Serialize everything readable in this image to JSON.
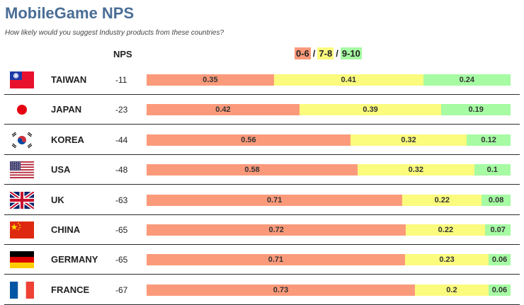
{
  "title": "MobileGame NPS",
  "subtitle": "How likely would you suggest Industry products from these countries?",
  "nps_header": "NPS",
  "legend": {
    "detractors": "0-6",
    "passives": "7-8",
    "promoters": "9-10",
    "separator": "/"
  },
  "colors": {
    "detractors": "#fb9a7b",
    "passives": "#fbfb7e",
    "promoters": "#a6fba3",
    "title": "#4a6d96"
  },
  "chart_data": {
    "type": "bar",
    "orientation": "horizontal",
    "stacked": true,
    "title": "MobileGame NPS",
    "subtitle": "How likely would you suggest Industry products from these countries?",
    "categories": [
      "TAIWAN",
      "JAPAN",
      "KOREA",
      "USA",
      "UK",
      "CHINA",
      "GERMANY",
      "FRANCE"
    ],
    "nps": [
      "-11",
      "-23",
      "-44",
      "-48",
      "-63",
      "-65",
      "-65",
      "-67"
    ],
    "flags": [
      "taiwan-flag-icon",
      "japan-flag-icon",
      "korea-flag-icon",
      "usa-flag-icon",
      "uk-flag-icon",
      "china-flag-icon",
      "germany-flag-icon",
      "france-flag-icon"
    ],
    "series": [
      {
        "name": "0-6",
        "values": [
          0.35,
          0.42,
          0.56,
          0.58,
          0.71,
          0.72,
          0.71,
          0.73
        ]
      },
      {
        "name": "7-8",
        "values": [
          0.41,
          0.39,
          0.32,
          0.32,
          0.22,
          0.22,
          0.23,
          0.2
        ]
      },
      {
        "name": "9-10",
        "values": [
          0.24,
          0.19,
          0.12,
          0.1,
          0.08,
          0.07,
          0.06,
          0.06
        ]
      }
    ],
    "legend_position": "top",
    "grid": false
  }
}
